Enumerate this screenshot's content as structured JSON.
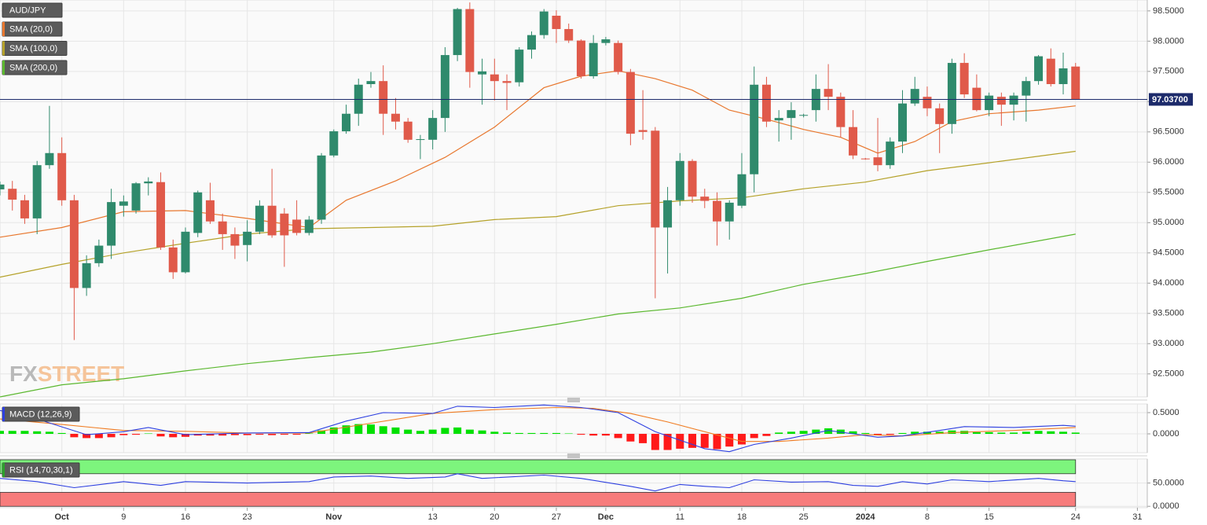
{
  "chart_data": [
    {
      "type": "candlestick",
      "symbol": "AUD/JPY",
      "up_color": "#2f8a6c",
      "down_color": "#e05a4a",
      "open": [
        95.55,
        95.56,
        95.37,
        95.07,
        95.95,
        96.15,
        95.37,
        93.92,
        94.33,
        94.62,
        95.28,
        95.2,
        95.65,
        95.67,
        94.59,
        94.18,
        94.83,
        95.37,
        95.02,
        94.81,
        94.63,
        94.85,
        95.28,
        95.15,
        95.05,
        94.83,
        95.05,
        96.11,
        96.51,
        96.8,
        97.29,
        97.34,
        96.8,
        96.67,
        96.37,
        96.37,
        96.73,
        97.77,
        98.53,
        97.45,
        97.45,
        97.34,
        97.32,
        97.86,
        98.1,
        98.42,
        98.2,
        98.01,
        97.42,
        97.97,
        97.97,
        97.49,
        96.53,
        96.52,
        94.92,
        95.37,
        96.02,
        95.43,
        95.36,
        95.02,
        95.28,
        95.8,
        97.28,
        96.69,
        96.73,
        96.77,
        96.86,
        97.21,
        97.08,
        96.58,
        96.06,
        96.08,
        95.95,
        96.34,
        96.97,
        97.08,
        96.89,
        96.63,
        97.64,
        97.23,
        96.86,
        97.08,
        96.95,
        97.1,
        97.34,
        97.71,
        97.29,
        97.58
      ],
      "high": [
        95.68,
        95.69,
        95.46,
        96.02,
        96.93,
        96.41,
        95.46,
        94.46,
        94.72,
        95.56,
        95.45,
        95.67,
        95.75,
        95.83,
        94.72,
        94.92,
        95.53,
        95.66,
        95.15,
        94.92,
        95.04,
        95.37,
        95.89,
        95.24,
        95.37,
        95.11,
        96.15,
        96.54,
        96.95,
        97.38,
        97.49,
        97.6,
        97.06,
        96.73,
        96.45,
        96.86,
        97.9,
        98.55,
        98.64,
        97.71,
        97.71,
        97.45,
        97.9,
        98.16,
        98.53,
        98.51,
        98.29,
        98.03,
        98.1,
        98.07,
        98.01,
        97.54,
        97.19,
        96.58,
        95.59,
        96.15,
        96.05,
        95.56,
        95.5,
        95.37,
        96.15,
        97.58,
        97.41,
        96.86,
        96.99,
        96.8,
        97.45,
        97.62,
        97.15,
        96.86,
        96.07,
        96.73,
        96.41,
        97.19,
        97.41,
        97.25,
        96.97,
        97.71,
        97.8,
        97.45,
        97.15,
        97.15,
        97.15,
        97.41,
        97.77,
        97.88,
        97.81,
        97.64
      ],
      "low": [
        95.45,
        95.2,
        94.98,
        94.81,
        95.89,
        95.28,
        93.06,
        93.79,
        94.27,
        94.4,
        95.1,
        95.15,
        95.45,
        94.55,
        94.07,
        94.16,
        94.76,
        94.98,
        94.55,
        94.4,
        94.36,
        94.81,
        94.75,
        94.27,
        94.79,
        94.79,
        94.98,
        96.08,
        96.47,
        96.6,
        97.23,
        96.45,
        96.54,
        96.32,
        96.05,
        96.21,
        96.5,
        97.67,
        97.23,
        96.95,
        97.02,
        96.86,
        97.25,
        97.71,
        98.04,
        97.97,
        97.97,
        97.38,
        97.38,
        97.93,
        97.45,
        96.28,
        96.37,
        93.75,
        94.16,
        95.28,
        95.33,
        95.24,
        94.62,
        94.72,
        95.24,
        95.5,
        96.58,
        96.34,
        96.37,
        96.74,
        96.67,
        96.86,
        96.41,
        96.05,
        96.04,
        95.85,
        95.89,
        96.15,
        96.93,
        96.76,
        96.15,
        96.47,
        97.06,
        96.84,
        96.76,
        96.6,
        96.69,
        96.67,
        97.28,
        97.25,
        97.12,
        97.03
      ],
      "close": [
        95.63,
        95.38,
        95.07,
        95.95,
        96.15,
        95.37,
        93.92,
        94.33,
        94.62,
        95.34,
        95.35,
        95.65,
        95.68,
        94.59,
        94.18,
        94.85,
        95.5,
        95.02,
        94.81,
        94.62,
        94.85,
        95.28,
        94.79,
        94.79,
        94.83,
        95.05,
        96.11,
        96.51,
        96.8,
        97.28,
        97.34,
        96.8,
        96.67,
        96.37,
        96.38,
        96.73,
        97.77,
        98.53,
        97.49,
        97.5,
        97.34,
        97.31,
        97.86,
        98.1,
        98.49,
        98.2,
        98.01,
        97.42,
        97.97,
        98.03,
        97.49,
        96.47,
        96.5,
        94.92,
        95.37,
        96.02,
        95.43,
        95.36,
        95.02,
        95.33,
        95.8,
        97.28,
        96.67,
        96.73,
        96.86,
        96.78,
        97.21,
        97.08,
        96.58,
        96.11,
        96.05,
        95.95,
        96.34,
        96.97,
        97.21,
        96.89,
        96.63,
        97.64,
        97.12,
        96.86,
        97.1,
        96.95,
        97.1,
        97.34,
        97.75,
        97.29,
        97.55,
        97.037
      ],
      "overlays": [
        {
          "name": "SMA (20,0)",
          "color": "#e8772e",
          "x": [
            0,
            5,
            10,
            15,
            20,
            25,
            28,
            32,
            36,
            40,
            44,
            47,
            50,
            53,
            56,
            59,
            62,
            65,
            68,
            71,
            74,
            77,
            80,
            84,
            87
          ],
          "values": [
            94.76,
            94.92,
            95.18,
            95.2,
            95.07,
            94.92,
            95.37,
            95.69,
            96.08,
            96.58,
            97.23,
            97.42,
            97.51,
            97.38,
            97.19,
            96.86,
            96.71,
            96.54,
            96.41,
            96.15,
            96.34,
            96.67,
            96.8,
            96.86,
            96.93
          ]
        },
        {
          "name": "SMA (100,0)",
          "color": "#b5a22a",
          "x": [
            0,
            5,
            10,
            15,
            20,
            25,
            30,
            35,
            40,
            45,
            50,
            55,
            60,
            65,
            70,
            75,
            80,
            87
          ],
          "values": [
            94.1,
            94.31,
            94.5,
            94.66,
            94.81,
            94.9,
            94.92,
            94.94,
            95.05,
            95.1,
            95.28,
            95.36,
            95.41,
            95.56,
            95.67,
            95.86,
            95.99,
            96.18
          ]
        },
        {
          "name": "SMA (200,0)",
          "color": "#5bb82f",
          "x": [
            0,
            5,
            10,
            15,
            20,
            25,
            30,
            35,
            40,
            45,
            50,
            55,
            60,
            65,
            70,
            75,
            80,
            87
          ],
          "values": [
            92.12,
            92.32,
            92.42,
            92.55,
            92.67,
            92.77,
            92.86,
            93.0,
            93.16,
            93.32,
            93.49,
            93.59,
            93.75,
            93.98,
            94.16,
            94.36,
            94.55,
            94.81
          ]
        }
      ],
      "last_price": {
        "value": 97.037,
        "label": "97.03700",
        "color": "#1d2b6b"
      },
      "watermark": [
        "FX",
        "STREET"
      ],
      "ylim": [
        92.12,
        98.68
      ],
      "yticks": [
        {
          "value": 98.5,
          "label": "98.5000"
        },
        {
          "value": 98,
          "label": "98.0000"
        },
        {
          "value": 97.5,
          "label": "97.5000"
        },
        {
          "value": 97,
          "label": "97.0000"
        },
        {
          "value": 96.5,
          "label": "96.5000"
        },
        {
          "value": 96,
          "label": "96.0000"
        },
        {
          "value": 95.5,
          "label": "95.5000"
        },
        {
          "value": 95,
          "label": "95.0000"
        },
        {
          "value": 94.5,
          "label": "94.5000"
        },
        {
          "value": 94,
          "label": "94.0000"
        },
        {
          "value": 93.5,
          "label": "93.5000"
        },
        {
          "value": 93,
          "label": "93.0000"
        },
        {
          "value": 92.5,
          "label": "92.5000"
        }
      ],
      "xlim": [
        0,
        92.8
      ],
      "xticks": [
        {
          "value": 5,
          "label": "Oct"
        },
        {
          "value": 10,
          "label": "9"
        },
        {
          "value": 15,
          "label": "16"
        },
        {
          "value": 20,
          "label": "23"
        },
        {
          "value": 27,
          "label": "Nov"
        },
        {
          "value": 35,
          "label": "13"
        },
        {
          "value": 40,
          "label": "20"
        },
        {
          "value": 45,
          "label": "27"
        },
        {
          "value": 49,
          "label": "Dec"
        },
        {
          "value": 55,
          "label": "11"
        },
        {
          "value": 60,
          "label": "18"
        },
        {
          "value": 65,
          "label": "25"
        },
        {
          "value": 70,
          "label": "2024"
        },
        {
          "value": 75,
          "label": "8"
        },
        {
          "value": 80,
          "label": "15"
        },
        {
          "value": 87,
          "label": "24"
        },
        {
          "value": 92,
          "label": "31"
        }
      ],
      "grid": true
    },
    {
      "type": "macd",
      "title": "MACD (12,26,9)",
      "positive_color": "#00e000",
      "negative_color": "#ff1a1a",
      "histogram": [
        0.07,
        0.07,
        0.07,
        0.06,
        0.05,
        0.02,
        -0.08,
        -0.1,
        -0.1,
        -0.08,
        -0.03,
        -0.02,
        0.01,
        -0.06,
        -0.08,
        -0.07,
        -0.04,
        -0.04,
        -0.04,
        -0.03,
        -0.03,
        -0.02,
        -0.03,
        -0.02,
        -0.02,
        0.01,
        0.08,
        0.15,
        0.2,
        0.23,
        0.22,
        0.18,
        0.15,
        0.1,
        0.07,
        0.1,
        0.14,
        0.15,
        0.1,
        0.08,
        0.05,
        0.03,
        0.02,
        0.02,
        0.02,
        0.02,
        0.01,
        -0.02,
        -0.04,
        -0.04,
        -0.1,
        -0.18,
        -0.22,
        -0.38,
        -0.38,
        -0.35,
        -0.33,
        -0.33,
        -0.36,
        -0.3,
        -0.25,
        -0.1,
        -0.05,
        0.03,
        0.05,
        0.07,
        0.1,
        0.13,
        0.1,
        0.06,
        0.02,
        -0.03,
        -0.02,
        0.02,
        0.05,
        0.05,
        0.05,
        0.08,
        0.07,
        0.04,
        0.04,
        0.03,
        0.03,
        0.05,
        0.07,
        0.06,
        0.05,
        0.03
      ],
      "macd_line": {
        "color": "#2d3fe0",
        "x": [
          0,
          3,
          7,
          10,
          12,
          15,
          20,
          25,
          28,
          31,
          35,
          37,
          40,
          44,
          47,
          50,
          53,
          57,
          59,
          61,
          64,
          67,
          69,
          71,
          73,
          76,
          78,
          82,
          86,
          87
        ],
        "values": [
          0.55,
          0.35,
          -0.02,
          0.05,
          0.15,
          -0.02,
          0.02,
          0.03,
          0.3,
          0.5,
          0.48,
          0.65,
          0.62,
          0.68,
          0.62,
          0.5,
          0.05,
          -0.35,
          -0.42,
          -0.25,
          -0.1,
          0.08,
          0,
          -0.08,
          -0.05,
          0.08,
          0.17,
          0.15,
          0.2,
          0.18
        ]
      },
      "signal_line": {
        "color": "#f07c22",
        "x": [
          0,
          5,
          10,
          15,
          20,
          25,
          30,
          35,
          40,
          45,
          48,
          51,
          54,
          57,
          60,
          63,
          67,
          70,
          73,
          77,
          82,
          87
        ],
        "values": [
          0.35,
          0.22,
          0.08,
          0.06,
          0.02,
          0.02,
          0.25,
          0.48,
          0.57,
          0.62,
          0.6,
          0.48,
          0.28,
          0.05,
          -0.18,
          -0.18,
          -0.1,
          -0.02,
          -0.05,
          0.03,
          0.08,
          0.15
        ]
      },
      "ylim": [
        -0.444,
        0.704
      ],
      "yticks": [
        {
          "value": 0.5,
          "label": "0.5000"
        },
        {
          "value": 0,
          "label": "0.0000"
        }
      ]
    },
    {
      "type": "rsi",
      "title": "RSI (14,70,30,1)",
      "color": "#2d3fe0",
      "bands": [
        {
          "from": 70,
          "to": 100,
          "color": "#7df57d"
        },
        {
          "from": 0,
          "to": 30,
          "color": "#f77c7c"
        }
      ],
      "x": [
        0,
        3,
        6,
        10,
        13,
        15,
        20,
        25,
        27,
        30,
        33,
        36,
        37,
        39,
        44,
        47,
        51,
        53,
        55,
        57,
        59,
        61,
        64,
        67,
        69,
        71,
        73,
        75,
        77,
        80,
        84,
        86,
        87
      ],
      "values": [
        60,
        53,
        40,
        53,
        45,
        53,
        50,
        53,
        63,
        65,
        60,
        63,
        70,
        60,
        67,
        60,
        43,
        33,
        47,
        43,
        40,
        57,
        52,
        53,
        45,
        43,
        53,
        48,
        57,
        53,
        60,
        55,
        53
      ],
      "ylim": [
        -3,
        101.7
      ],
      "yticks": [
        {
          "value": 50,
          "label": "50.0000"
        },
        {
          "value": 0,
          "label": "0.0000"
        }
      ]
    }
  ]
}
